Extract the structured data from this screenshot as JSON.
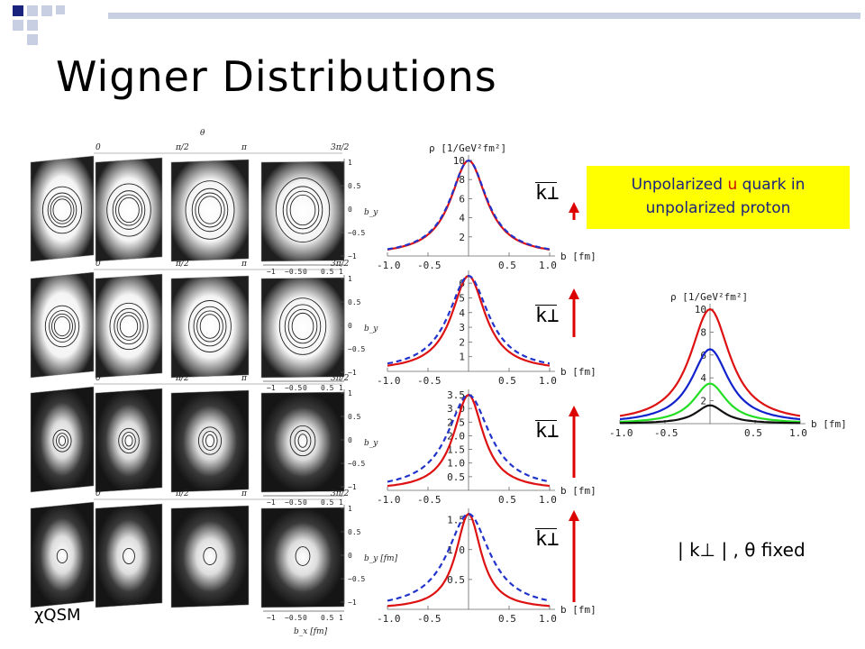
{
  "slide": {
    "title": "Wigner Distributions",
    "caption_parts": [
      "Unpolarized ",
      "u",
      " quark in",
      "unpolarized proton"
    ],
    "model_label": "χQSM",
    "fixed_label": "| k⊥ | ,  θ  fixed",
    "k_label": "k⊥",
    "accent_color": "#ffff00",
    "caption_color": "#1a237e"
  },
  "contour_axes": {
    "theta_label": "θ",
    "theta_ticks": [
      "0",
      "π/2",
      "π",
      "3π/2"
    ],
    "by_label": "b_y",
    "bx_label": "b_x [fm]",
    "by_label_last": "b_y [fm]",
    "by_ticks": [
      "1",
      "0.5",
      "0",
      "−0.5",
      "−1"
    ],
    "bx_ticks": [
      "−1",
      "−0.5",
      "0",
      "0.5",
      "1"
    ]
  },
  "chart_data": [
    {
      "type": "line",
      "title": "ρ [1/GeV²fm²]",
      "xlabel": "b [fm]",
      "xlim": [
        -1.0,
        1.0
      ],
      "ylim": [
        0,
        10
      ],
      "x_ticks": [
        "-1.0",
        "-0.5",
        "0.5",
        "1.0"
      ],
      "y_ticks": [
        "2",
        "4",
        "6",
        "8",
        "10"
      ],
      "series": [
        {
          "style": "solid",
          "color": "#dd1111",
          "peak": 10.0,
          "width": 0.34
        },
        {
          "style": "dashed",
          "color": "#2233cc",
          "peak": 10.0,
          "width": 0.35
        }
      ]
    },
    {
      "type": "line",
      "xlabel": "b [fm]",
      "xlim": [
        -1.0,
        1.0
      ],
      "ylim": [
        0,
        6.5
      ],
      "x_ticks": [
        "-1.0",
        "-0.5",
        "0.5",
        "1.0"
      ],
      "y_ticks": [
        "1",
        "2",
        "3",
        "4",
        "5",
        "6"
      ],
      "series": [
        {
          "style": "solid",
          "color": "#dd1111",
          "peak": 6.5,
          "width": 0.32
        },
        {
          "style": "dashed",
          "color": "#2233cc",
          "peak": 6.5,
          "width": 0.38
        }
      ]
    },
    {
      "type": "line",
      "xlabel": "b [fm]",
      "xlim": [
        -1.0,
        1.0
      ],
      "ylim": [
        0,
        3.5
      ],
      "x_ticks": [
        "-1.0",
        "-0.5",
        "0.5",
        "1.0"
      ],
      "y_ticks": [
        "0.5",
        "1.0",
        "1.5",
        "2.0",
        "2.5",
        "3.0",
        "3.5"
      ],
      "series": [
        {
          "style": "solid",
          "color": "#dd1111",
          "peak": 3.5,
          "width": 0.28
        },
        {
          "style": "dashed",
          "color": "#2233cc",
          "peak": 3.5,
          "width": 0.4
        }
      ]
    },
    {
      "type": "line",
      "xlabel": "b [fm]",
      "xlim": [
        -1.0,
        1.0
      ],
      "ylim": [
        0,
        1.6
      ],
      "x_ticks": [
        "-1.0",
        "-0.5",
        "0.5",
        "1.0"
      ],
      "y_ticks": [
        "0.5",
        "1.0",
        "1.5"
      ],
      "series": [
        {
          "style": "solid",
          "color": "#dd1111",
          "peak": 1.6,
          "width": 0.24
        },
        {
          "style": "dashed",
          "color": "#2233cc",
          "peak": 1.6,
          "width": 0.4
        }
      ]
    },
    {
      "type": "line",
      "title": "ρ [1/GeV²fm²]",
      "xlabel": "b [fm]",
      "xlim": [
        -1.0,
        1.0
      ],
      "ylim": [
        0,
        10
      ],
      "x_ticks": [
        "-1.0",
        "-0.5",
        "0.5",
        "1.0"
      ],
      "y_ticks": [
        "2",
        "4",
        "6",
        "8",
        "10"
      ],
      "series": [
        {
          "style": "solid",
          "color": "#dd1111",
          "peak": 10.0,
          "width": 0.34
        },
        {
          "style": "solid",
          "color": "#1122cc",
          "peak": 6.5,
          "width": 0.32
        },
        {
          "style": "solid",
          "color": "#22dd22",
          "peak": 3.5,
          "width": 0.28
        },
        {
          "style": "solid",
          "color": "#111111",
          "peak": 1.6,
          "width": 0.24
        }
      ]
    }
  ]
}
